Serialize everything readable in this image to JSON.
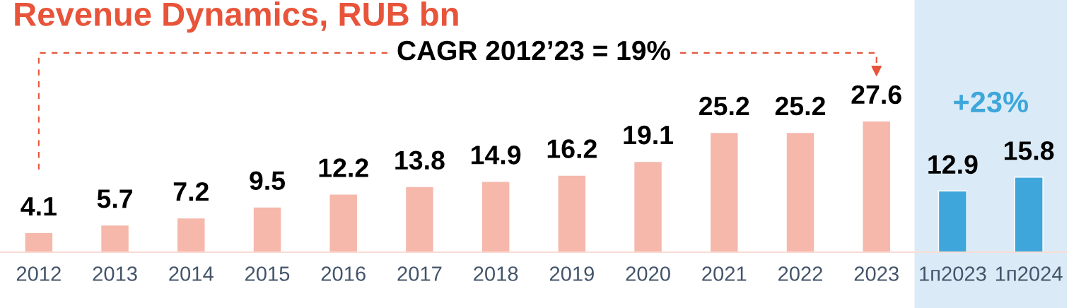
{
  "chart_data": {
    "type": "bar",
    "title": "Revenue Dynamics, RUB bn",
    "categories": [
      "2012",
      "2013",
      "2014",
      "2015",
      "2016",
      "2017",
      "2018",
      "2019",
      "2020",
      "2021",
      "2022",
      "2023",
      "1п2023",
      "1п2024"
    ],
    "values": [
      4.1,
      5.7,
      7.2,
      9.5,
      12.2,
      13.8,
      14.9,
      16.2,
      19.1,
      25.2,
      25.2,
      27.6,
      12.9,
      15.8
    ],
    "colors": [
      "#f5b8ab",
      "#f5b8ab",
      "#f5b8ab",
      "#f5b8ab",
      "#f5b8ab",
      "#f5b8ab",
      "#f5b8ab",
      "#f5b8ab",
      "#f5b8ab",
      "#f5b8ab",
      "#f5b8ab",
      "#f5b8ab",
      "#3ea6da",
      "#3ea6da"
    ],
    "data_labels": true,
    "tick_labels": "x",
    "annotations": [
      "CAGR 2012’23 = 19%",
      "+23%"
    ],
    "bands": [
      {
        "axis": "x",
        "from": "1п2023",
        "to": "1п2024",
        "color": "#daebf7"
      }
    ]
  }
}
